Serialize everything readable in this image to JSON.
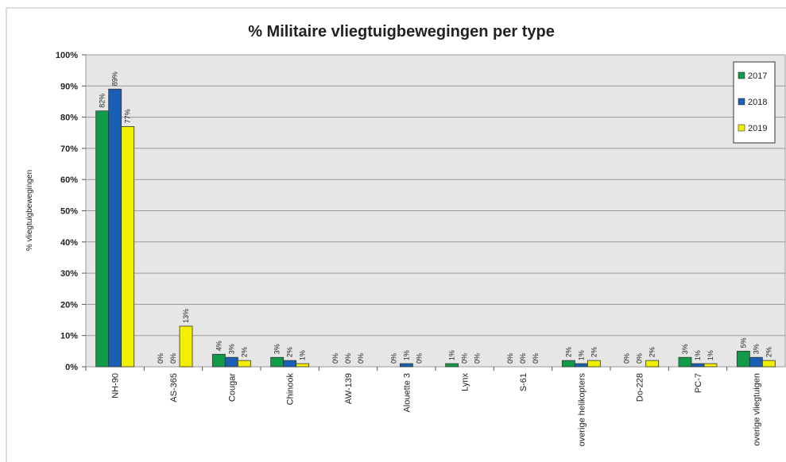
{
  "chart_data": {
    "type": "bar",
    "title": "% Militaire vliegtuigbewegingen per type",
    "y_label": "% vliegtuigbewegingen",
    "categories": [
      "NH-90",
      "AS-365",
      "Cougar",
      "Chinook",
      "AW-139",
      "Alouette 3",
      "Lynx",
      "S-61",
      "overige helikopters",
      "Do-228",
      "PC-7",
      "overige vliegtuigen"
    ],
    "series": [
      {
        "name": "2017",
        "color": "#119a48",
        "values": [
          82,
          0,
          4,
          3,
          0,
          0,
          1,
          0,
          2,
          0,
          3,
          5
        ],
        "value_labels": [
          "82%",
          "0%",
          "4%",
          "3%",
          "0%",
          "0%",
          "1%",
          "0%",
          "2%",
          "0%",
          "3%",
          "5%"
        ]
      },
      {
        "name": "2018",
        "color": "#1a5fb4",
        "values": [
          89,
          0,
          3,
          2,
          0,
          1,
          0,
          0,
          1,
          0,
          1,
          3
        ],
        "value_labels": [
          "89%",
          "0%",
          "3%",
          "2%",
          "0%",
          "1%",
          "0%",
          "0%",
          "1%",
          "0%",
          "1%",
          "3%"
        ]
      },
      {
        "name": "2019",
        "color": "#f2ef00",
        "values": [
          77,
          13,
          2,
          1,
          0,
          0,
          0,
          0,
          2,
          2,
          1,
          2
        ],
        "value_labels": [
          "77%",
          "13%",
          "2%",
          "1%",
          "0%",
          "0%",
          "0%",
          "0%",
          "2%",
          "2%",
          "1%",
          "2%"
        ]
      }
    ],
    "ylim": [
      0,
      100
    ],
    "yticks": [
      {
        "value": 0,
        "label": "0%"
      },
      {
        "value": 10,
        "label": "10%"
      },
      {
        "value": 20,
        "label": "20%"
      },
      {
        "value": 30,
        "label": "30%"
      },
      {
        "value": 40,
        "label": "40%"
      },
      {
        "value": 50,
        "label": "50%"
      },
      {
        "value": 60,
        "label": "60%"
      },
      {
        "value": 70,
        "label": "70%"
      },
      {
        "value": 80,
        "label": "80%"
      },
      {
        "value": 90,
        "label": "90%"
      },
      {
        "value": 100,
        "label": "100%"
      }
    ],
    "grid": true,
    "legend": "top-right"
  }
}
